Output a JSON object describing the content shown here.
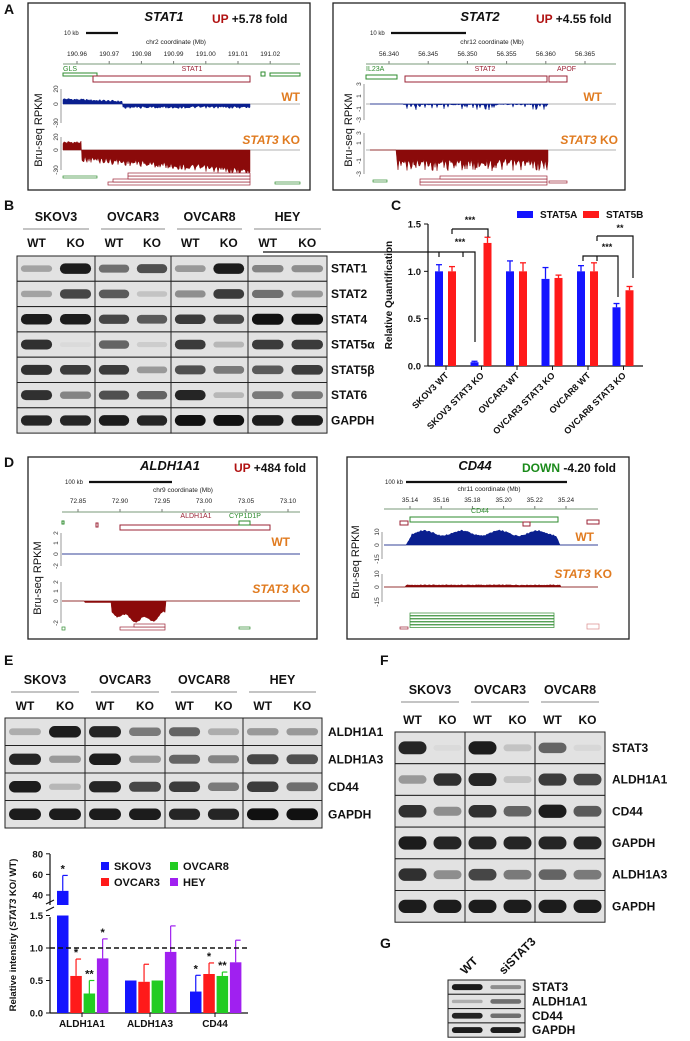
{
  "panel_labels": [
    "A",
    "B",
    "C",
    "D",
    "E",
    "F",
    "G"
  ],
  "colors": {
    "wt_track": "#0a1f8f",
    "ko_track": "#8b0a0a",
    "gene_red": "#9b2335",
    "gene_green": "#2e8b2e",
    "condition_label": "#e07b20",
    "up": "#b01010",
    "down": "#1a8a1a",
    "blue": "#1414ff",
    "red": "#ff1a1a",
    "green": "#22cc22",
    "purple": "#a020f0"
  },
  "panel_a": [
    {
      "gene": "STAT1",
      "direction": "UP",
      "fold": " +5.78 fold",
      "scale_label": "10 kb",
      "coord_label": "chr2 coordinate (Mb)",
      "ticks": [
        "190.96",
        "190.97",
        "190.98",
        "190.99",
        "191.00",
        "191.01",
        "191.02"
      ],
      "gene_labels": [
        "GLS",
        "STAT1"
      ],
      "ylabel": "Bru-seq RPKM",
      "wt_label": "WT",
      "ko_gene": "STAT3",
      "ko_suffix": " KO",
      "wt_yticks": [
        "20",
        "0",
        "-30"
      ],
      "ko_yticks": [
        "20",
        "0",
        "-30"
      ]
    },
    {
      "gene": "STAT2",
      "direction": "UP",
      "fold": " +4.55 fold",
      "scale_label": "10 kb",
      "coord_label": "chr12 coordinate (Mb)",
      "ticks": [
        "56.340",
        "56.345",
        "56.350",
        "56.355",
        "56.360",
        "56.365"
      ],
      "gene_labels": [
        "IL23A",
        "STAT2",
        "APOF"
      ],
      "ylabel": "Bru-seq RPKM",
      "wt_label": "WT",
      "ko_gene": "STAT3",
      "ko_suffix": " KO",
      "wt_yticks": [
        "3",
        "1",
        "-1",
        "-3"
      ],
      "ko_yticks": [
        "3",
        "1",
        "-1",
        "-3"
      ]
    }
  ],
  "panel_d": [
    {
      "gene": "ALDH1A1",
      "direction": "UP",
      "fold": " +484 fold",
      "scale_label": "100 kb",
      "coord_label": "chr9 coordinate (Mb)",
      "ticks": [
        "72.85",
        "72.90",
        "72.95",
        "73.00",
        "73.05",
        "73.10"
      ],
      "gene_labels": [
        "ALDH1A1",
        "CYP1D1P"
      ],
      "ylabel": "Bru-seq RPKM",
      "wt_label": "WT",
      "ko_gene": "STAT3",
      "ko_suffix": " KO",
      "wt_yticks": [
        "2",
        "1",
        "0",
        "-2"
      ],
      "ko_yticks": [
        "2",
        "1",
        "0",
        "-2"
      ]
    },
    {
      "gene": "CD44",
      "direction": "DOWN",
      "fold": " -4.20 fold",
      "scale_label": "100 kb",
      "coord_label": "chr11 coordinate (Mb)",
      "ticks": [
        "35.14",
        "35.16",
        "35.18",
        "35.20",
        "35.22",
        "35.24"
      ],
      "gene_labels": [
        "CD44"
      ],
      "ylabel": "Bru-seq RPKM",
      "wt_label": "WT",
      "ko_gene": "STAT3",
      "ko_suffix": " KO",
      "wt_yticks": [
        "10",
        "0",
        "-15"
      ],
      "ko_yticks": [
        "10",
        "0",
        "-15"
      ]
    }
  ],
  "panel_b": {
    "cell_lines": [
      "SKOV3",
      "OVCAR3",
      "OVCAR8",
      "HEY"
    ],
    "lanes": [
      "WT",
      "KO",
      "WT",
      "KO",
      "WT",
      "KO",
      "WT",
      "KO"
    ],
    "rows": [
      {
        "label": "STAT1",
        "bands": [
          0.3,
          0.95,
          0.55,
          0.7,
          0.35,
          0.95,
          0.45,
          0.4
        ]
      },
      {
        "label": "STAT2",
        "bands": [
          0.3,
          0.75,
          0.65,
          0.15,
          0.4,
          0.8,
          0.55,
          0.35
        ]
      },
      {
        "label": "STAT4",
        "bands": [
          0.95,
          0.95,
          0.75,
          0.65,
          0.8,
          0.75,
          1,
          1
        ]
      },
      {
        "label": "STAT5α",
        "bands": [
          0.85,
          0.0,
          0.6,
          0.1,
          0.8,
          0.2,
          0.8,
          0.8
        ]
      },
      {
        "label": "STAT5β",
        "bands": [
          0.85,
          0.8,
          0.8,
          0.35,
          0.7,
          0.5,
          0.65,
          0.8
        ]
      },
      {
        "label": "STAT6",
        "bands": [
          0.85,
          0.45,
          0.7,
          0.6,
          0.9,
          0.2,
          0.5,
          0.5
        ]
      },
      {
        "label": "GAPDH",
        "bands": [
          0.9,
          0.9,
          0.95,
          0.9,
          1,
          1,
          0.95,
          0.95
        ]
      }
    ]
  },
  "panel_e_blot": {
    "cell_lines": [
      "SKOV3",
      "OVCAR3",
      "OVCAR8",
      "HEY"
    ],
    "lanes": [
      "WT",
      "KO",
      "WT",
      "KO",
      "WT",
      "KO",
      "WT",
      "KO"
    ],
    "rows": [
      {
        "label": "ALDH1A1",
        "bands": [
          0.25,
          0.95,
          0.9,
          0.5,
          0.6,
          0.25,
          0.35,
          0.35
        ]
      },
      {
        "label": "ALDH1A3",
        "bands": [
          0.9,
          0.35,
          0.95,
          0.35,
          0.6,
          0.45,
          0.75,
          0.7
        ]
      },
      {
        "label": "CD44",
        "bands": [
          0.95,
          0.2,
          0.9,
          0.75,
          0.8,
          0.5,
          0.8,
          0.55
        ]
      },
      {
        "label": "GAPDH",
        "bands": [
          0.95,
          0.95,
          0.95,
          0.95,
          0.9,
          0.9,
          1,
          1
        ]
      }
    ]
  },
  "panel_f": {
    "cell_lines": [
      "SKOV3",
      "OVCAR3",
      "OVCAR8"
    ],
    "lanes": [
      "WT",
      "KO",
      "WT",
      "KO",
      "WT",
      "KO"
    ],
    "rows": [
      {
        "label": "STAT3",
        "bands": [
          0.9,
          0.0,
          0.95,
          0.15,
          0.6,
          0.05
        ]
      },
      {
        "label": "ALDH1A1",
        "bands": [
          0.35,
          0.85,
          0.9,
          0.15,
          0.8,
          0.75
        ]
      },
      {
        "label": "CD44",
        "bands": [
          0.85,
          0.4,
          0.85,
          0.6,
          0.95,
          0.65
        ]
      },
      {
        "label": "GAPDH",
        "bands": [
          0.95,
          0.9,
          0.9,
          0.9,
          0.9,
          0.9
        ]
      },
      {
        "label": "ALDH1A3",
        "bands": [
          0.85,
          0.4,
          0.75,
          0.5,
          0.6,
          0.5
        ]
      },
      {
        "label": "GAPDH",
        "bands": [
          0.95,
          0.95,
          0.95,
          0.95,
          0.95,
          0.95
        ]
      }
    ]
  },
  "panel_g": {
    "lanes": [
      "WT",
      "siSTAT3"
    ],
    "rows": [
      {
        "label": "STAT3",
        "bands": [
          0.95,
          0.4
        ]
      },
      {
        "label": "ALDH1A1",
        "bands": [
          0.25,
          0.55
        ]
      },
      {
        "label": "CD44",
        "bands": [
          0.9,
          0.55
        ]
      },
      {
        "label": "GAPDH",
        "bands": [
          0.95,
          0.95
        ]
      }
    ]
  },
  "chart_data": [
    {
      "type": "bar",
      "panel": "C",
      "categories": [
        "SKOV3 WT",
        "SKOV3 STAT3 KO",
        "OVCAR3 WT",
        "OVCAR3 STAT3 KO",
        "OVCAR8 WT",
        "OVCAR8 STAT3 KO"
      ],
      "series": [
        {
          "name": "STAT5A",
          "color": "#1414ff",
          "values": [
            1.0,
            0.04,
            1.0,
            0.92,
            1.0,
            0.62
          ],
          "errors": [
            0.07,
            0.01,
            0.11,
            0.12,
            0.06,
            0.04
          ]
        },
        {
          "name": "STAT5B",
          "color": "#ff1a1a",
          "values": [
            1.0,
            1.3,
            1.0,
            0.93,
            1.0,
            0.8
          ],
          "errors": [
            0.05,
            0.06,
            0.09,
            0.03,
            0.09,
            0.04
          ]
        }
      ],
      "ylabel": "Relative Quantification",
      "yticks": [
        "0.0",
        "0.5",
        "1.0",
        "1.5"
      ],
      "ylim": [
        0,
        1.5
      ],
      "significance": [
        "***",
        "***",
        "***",
        "**"
      ],
      "legend": "top-right"
    },
    {
      "type": "bar",
      "panel": "E",
      "categories": [
        "ALDH1A1",
        "ALDH1A3",
        "CD44"
      ],
      "series": [
        {
          "name": "SKOV3",
          "color": "#1414ff",
          "values": [
            44,
            0.5,
            0.33
          ],
          "errors": [
            15,
            0,
            0.25
          ],
          "stars": [
            "*",
            "",
            "*"
          ]
        },
        {
          "name": "OVCAR3",
          "color": "#ff1a1a",
          "values": [
            0.57,
            0.48,
            0.6
          ],
          "errors": [
            0.26,
            0.27,
            0.17
          ],
          "stars": [
            "*",
            "",
            "*"
          ]
        },
        {
          "name": "OVCAR8",
          "color": "#22cc22",
          "values": [
            0.3,
            0.5,
            0.57
          ],
          "errors": [
            0.2,
            0,
            0.06
          ],
          "stars": [
            "**",
            "",
            "**"
          ]
        },
        {
          "name": "HEY",
          "color": "#a020f0",
          "values": [
            0.84,
            0.94,
            0.78
          ],
          "errors": [
            0.3,
            0.4,
            0.34
          ],
          "stars": [
            "*",
            "",
            ""
          ]
        }
      ],
      "ylabel_italic": "STAT3",
      "ylabel_pre": "Relative intensity (",
      "ylabel_post": " KO/ WT)",
      "yticks_lower": [
        "0.0",
        "0.5",
        "1.0",
        "1.5"
      ],
      "yticks_upper": [
        "40",
        "60",
        "80"
      ],
      "ylim": [
        0,
        80
      ],
      "axis_break": [
        1.5,
        30
      ],
      "reference_line": 1.0,
      "legend": "top-right"
    }
  ]
}
